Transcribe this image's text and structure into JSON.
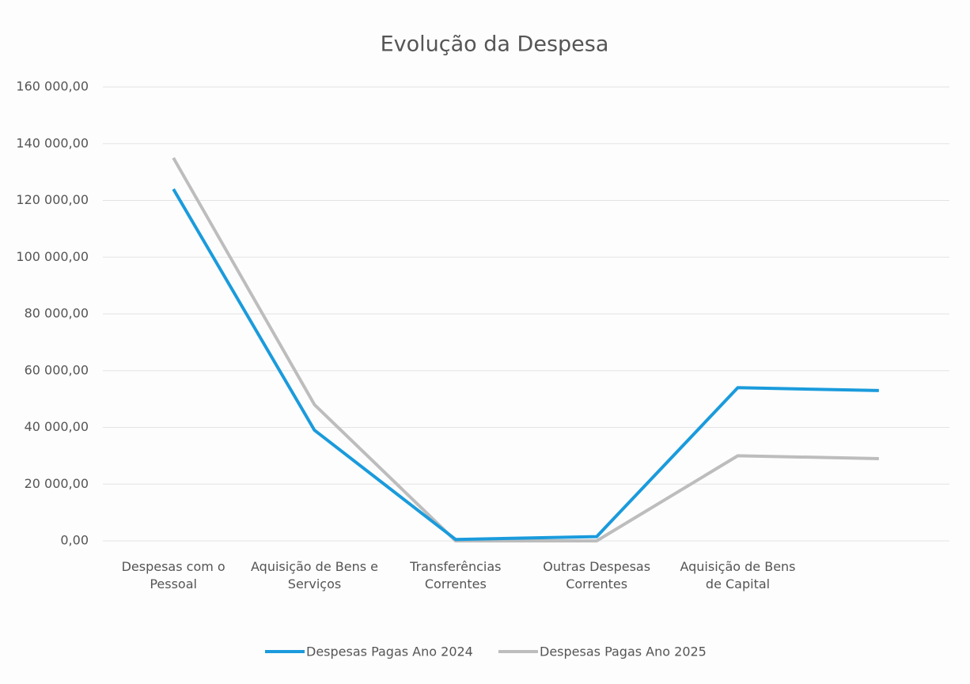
{
  "chart_data": {
    "type": "line",
    "title": "Evolução da Despesa",
    "categories": [
      "Despesas com o Pessoal",
      "Aquisição de Bens e Serviços",
      "Transferências Correntes",
      "Outras Despesas Correntes",
      "Aquisição de Bens de Capital",
      null
    ],
    "series": [
      {
        "name": "Despesas Pagas Ano 2024",
        "color": "#1a9bdc",
        "values": [
          124000,
          39000,
          500,
          1500,
          54000,
          53000
        ]
      },
      {
        "name": "Despesas Pagas Ano 2025",
        "color": "#bdbdbd",
        "values": [
          135000,
          48000,
          0,
          0,
          30000,
          29000
        ]
      }
    ],
    "ylim": [
      0,
      160000
    ],
    "yticks": [
      {
        "value": 0,
        "label": "0,00"
      },
      {
        "value": 20000,
        "label": "20 000,00"
      },
      {
        "value": 40000,
        "label": "40 000,00"
      },
      {
        "value": 60000,
        "label": "60 000,00"
      },
      {
        "value": 80000,
        "label": "80 000,00"
      },
      {
        "value": 100000,
        "label": "100 000,00"
      },
      {
        "value": 120000,
        "label": "120 000,00"
      },
      {
        "value": 140000,
        "label": "140 000,00"
      },
      {
        "value": 160000,
        "label": "160 000,00"
      }
    ],
    "grid": true,
    "legend": "bottom"
  }
}
